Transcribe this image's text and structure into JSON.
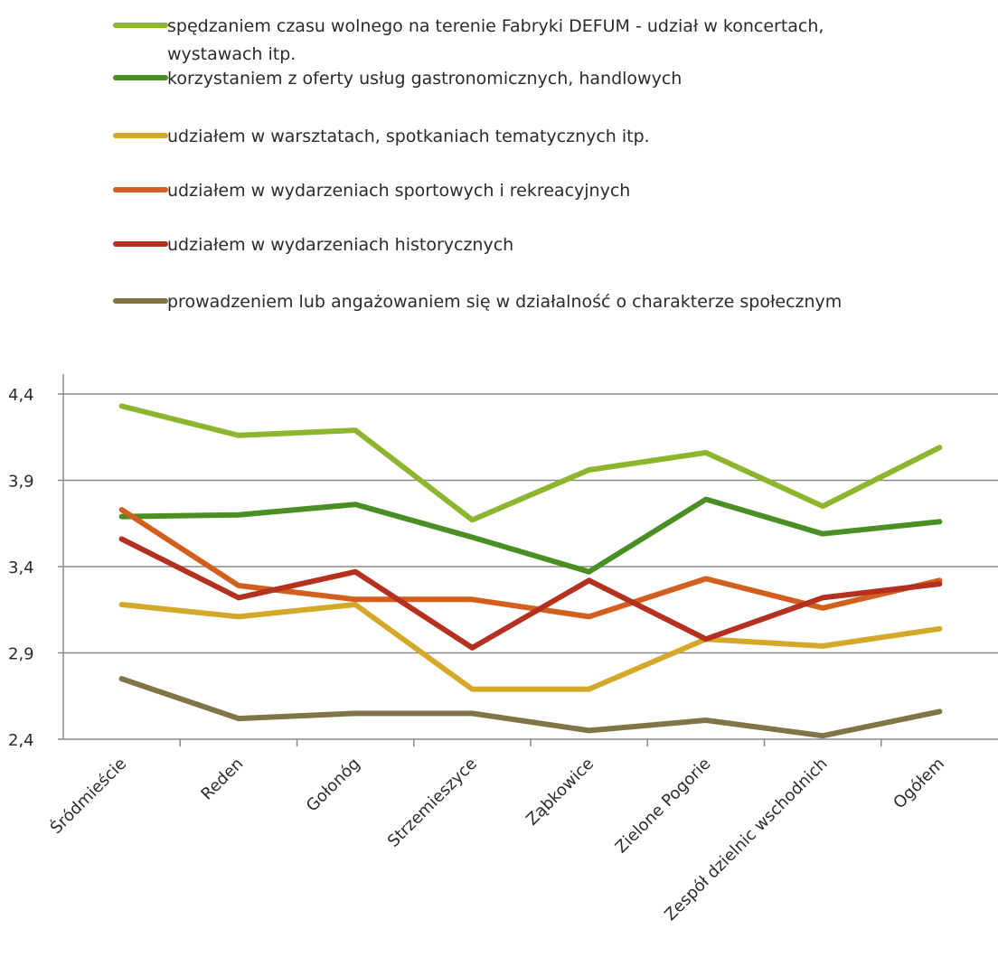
{
  "chart_data": {
    "type": "line",
    "title": "",
    "xlabel": "",
    "ylabel": "",
    "ylim": [
      2.4,
      4.4
    ],
    "yticks": [
      "2,4",
      "2,9",
      "3,4",
      "3,9",
      "4,4"
    ],
    "grid": true,
    "legend_position": "top",
    "categories": [
      "Śródmieście",
      "Reden",
      "Gołonóg",
      "Strzemieszyce",
      "Ząbkowice",
      "Zielone Pogorie",
      "Zespół dzielnic wschodnich",
      "Ogółem"
    ],
    "series": [
      {
        "name": "spędzaniem czasu wolnego na terenie Fabryki DEFUM - udział w koncertach, wystawach itp.",
        "legend_lines": [
          "spędzaniem czasu wolnego na terenie Fabryki DEFUM - udział w koncertach,",
          "wystawach itp."
        ],
        "color": "#8DB62E",
        "values": [
          4.33,
          4.16,
          4.19,
          3.67,
          3.96,
          4.06,
          3.75,
          4.09
        ]
      },
      {
        "name": "korzystaniem z oferty usług gastronomicznych, handlowych",
        "legend_lines": [
          "korzystaniem z oferty usług gastronomicznych, handlowych"
        ],
        "color": "#4A8F23",
        "values": [
          3.69,
          3.7,
          3.76,
          3.57,
          3.37,
          3.79,
          3.59,
          3.66
        ]
      },
      {
        "name": "udziałem w warsztatach, spotkaniach tematycznych itp.",
        "legend_lines": [
          "udziałem w warsztatach, spotkaniach tematycznych itp."
        ],
        "color": "#D4A829",
        "values": [
          3.18,
          3.11,
          3.18,
          2.69,
          2.69,
          2.98,
          2.94,
          3.04
        ]
      },
      {
        "name": "udziałem w wydarzeniach sportowych i rekreacyjnych",
        "legend_lines": [
          "udziałem w wydarzeniach sportowych i rekreacyjnych"
        ],
        "color": "#D35F1F",
        "values": [
          3.73,
          3.29,
          3.21,
          3.21,
          3.11,
          3.33,
          3.16,
          3.32
        ]
      },
      {
        "name": "udziałem w wydarzeniach historycznych",
        "legend_lines": [
          "udziałem w wydarzeniach historycznych"
        ],
        "color": "#B5311F",
        "values": [
          3.56,
          3.22,
          3.37,
          2.93,
          3.32,
          2.98,
          3.22,
          3.3
        ]
      },
      {
        "name": "prowadzeniem lub angażowaniem się w działalność o charakterze społecznym",
        "legend_lines": [
          "prowadzeniem lub angażowaniem się w działalność o charakterze społecznym"
        ],
        "color": "#807547",
        "values": [
          2.75,
          2.52,
          2.55,
          2.55,
          2.45,
          2.51,
          2.42,
          2.56
        ]
      }
    ]
  }
}
